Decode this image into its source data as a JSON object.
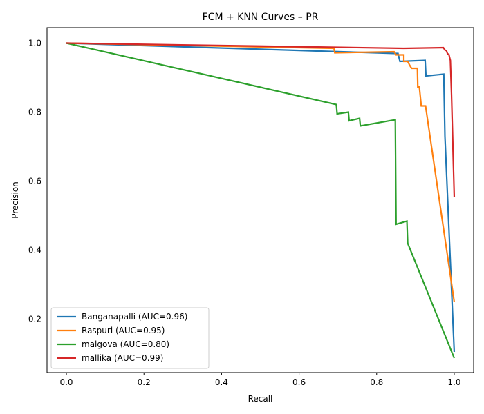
{
  "chart_data": {
    "type": "line",
    "title": "FCM + KNN Curves – PR",
    "xlabel": "Recall",
    "ylabel": "Precision",
    "xlim": [
      -0.05,
      1.05
    ],
    "ylim": [
      0.045,
      1.045
    ],
    "xticks": [
      0.0,
      0.2,
      0.4,
      0.6,
      0.8,
      1.0
    ],
    "yticks": [
      0.2,
      0.4,
      0.6,
      0.8,
      1.0
    ],
    "xtick_labels": [
      "0.0",
      "0.2",
      "0.4",
      "0.6",
      "0.8",
      "1.0"
    ],
    "ytick_labels": [
      "0.2",
      "0.4",
      "0.6",
      "0.8",
      "1.0"
    ],
    "grid": false,
    "legend_position": "lower-left",
    "series": [
      {
        "name": "Banganapalli (AUC=0.96)",
        "color": "#1f77b4",
        "x": [
          0.0,
          0.85,
          0.855,
          0.86,
          0.925,
          0.927,
          0.973,
          0.976,
          1.0
        ],
        "y": [
          1.0,
          0.97,
          0.97,
          0.947,
          0.95,
          0.905,
          0.91,
          0.73,
          0.105
        ]
      },
      {
        "name": "Raspuri (AUC=0.95)",
        "color": "#ff7f0e",
        "x": [
          0.0,
          0.69,
          0.692,
          0.845,
          0.85,
          0.87,
          0.87,
          0.88,
          0.885,
          0.89,
          0.905,
          0.906,
          0.91,
          0.915,
          0.918,
          0.926,
          1.0
        ],
        "y": [
          1.0,
          0.985,
          0.972,
          0.975,
          0.966,
          0.966,
          0.947,
          0.947,
          0.936,
          0.927,
          0.927,
          0.873,
          0.873,
          0.818,
          0.818,
          0.818,
          0.25
        ]
      },
      {
        "name": "malgova (AUC=0.80)",
        "color": "#2ca02c",
        "x": [
          0.0,
          0.696,
          0.698,
          0.727,
          0.729,
          0.756,
          0.758,
          0.848,
          0.85,
          0.878,
          0.88,
          1.0
        ],
        "y": [
          1.0,
          0.822,
          0.795,
          0.8,
          0.775,
          0.782,
          0.76,
          0.778,
          0.475,
          0.484,
          0.42,
          0.087
        ]
      },
      {
        "name": "mallika (AUC=0.99)",
        "color": "#d62728",
        "x": [
          0.0,
          0.87,
          0.972,
          0.976,
          0.98,
          0.983,
          0.986,
          0.99,
          0.993,
          1.0
        ],
        "y": [
          1.0,
          0.985,
          0.987,
          0.98,
          0.978,
          0.968,
          0.968,
          0.95,
          0.85,
          0.555
        ]
      }
    ]
  }
}
